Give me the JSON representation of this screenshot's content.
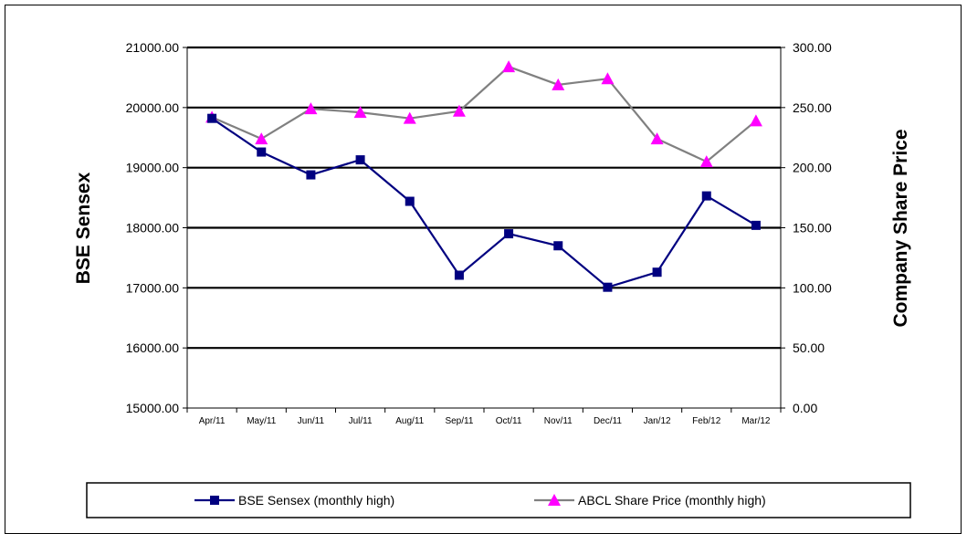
{
  "chart_data": {
    "type": "line",
    "categories": [
      "Apr/11",
      "May/11",
      "Jun/11",
      "Jul/11",
      "Aug/11",
      "Sep/11",
      "Oct/11",
      "Nov/11",
      "Dec/11",
      "Jan/12",
      "Feb/12",
      "Mar/12"
    ],
    "series": [
      {
        "name": "BSE Sensex (monthly high)",
        "axis": "left",
        "color": "#000080",
        "marker": "square",
        "values": [
          19820,
          19260,
          18880,
          19130,
          18440,
          17210,
          17900,
          17700,
          17010,
          17260,
          18530,
          18040
        ]
      },
      {
        "name": "ABCL Share Price (monthly high)",
        "axis": "right",
        "color": "#808080",
        "marker_color": "#FF00FF",
        "marker": "triangle",
        "values": [
          242,
          224,
          249,
          246,
          241,
          247,
          284,
          269,
          274,
          224,
          205,
          239
        ]
      }
    ],
    "ylabel_left": "BSE Sensex",
    "ylabel_right": "Company Share Price",
    "ylim_left": [
      15000,
      21000
    ],
    "ylim_right": [
      0,
      300
    ],
    "yticks_left": [
      "15000.00",
      "16000.00",
      "17000.00",
      "18000.00",
      "19000.00",
      "20000.00",
      "21000.00"
    ],
    "yticks_right": [
      "0.00",
      "50.00",
      "100.00",
      "150.00",
      "200.00",
      "250.00",
      "300.00"
    ],
    "grid": true,
    "legend_position": "bottom"
  }
}
